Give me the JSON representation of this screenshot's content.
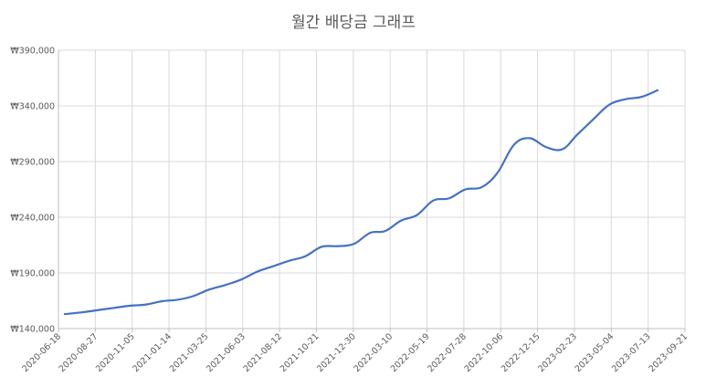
{
  "chart_data": {
    "type": "line",
    "title": "월간 배당금 그래프",
    "xlabel": "",
    "ylabel": "",
    "x_range": [
      "2020-06-18",
      "2023-09-21"
    ],
    "ylim": [
      140000,
      390000
    ],
    "y_ticks": [
      140000,
      190000,
      240000,
      290000,
      340000,
      390000
    ],
    "y_tick_labels": [
      "₩140,000",
      "₩190,000",
      "₩240,000",
      "₩290,000",
      "₩340,000",
      "₩390,000"
    ],
    "x_tick_labels": [
      "2020-06-18",
      "2020-08-27",
      "2020-11-05",
      "2021-01-14",
      "2021-03-25",
      "2021-06-03",
      "2021-08-12",
      "2021-10-21",
      "2021-12-30",
      "2022-03-10",
      "2022-05-19",
      "2022-07-28",
      "2022-10-06",
      "2022-12-15",
      "2023-02-23",
      "2023-05-04",
      "2023-07-13",
      "2023-09-21"
    ],
    "grid": true,
    "legend": "none",
    "series": [
      {
        "color": "#4472c4",
        "x": [
          "2020-06-30",
          "2020-07-31",
          "2020-08-31",
          "2020-09-30",
          "2020-10-31",
          "2020-11-30",
          "2020-12-31",
          "2021-01-31",
          "2021-02-28",
          "2021-03-31",
          "2021-04-30",
          "2021-05-31",
          "2021-06-30",
          "2021-07-31",
          "2021-08-31",
          "2021-09-30",
          "2021-10-31",
          "2021-11-30",
          "2021-12-31",
          "2022-01-31",
          "2022-02-28",
          "2022-03-31",
          "2022-04-30",
          "2022-05-31",
          "2022-06-30",
          "2022-07-31",
          "2022-08-31",
          "2022-09-30",
          "2022-10-31",
          "2022-11-30",
          "2022-12-31",
          "2023-01-31",
          "2023-02-28",
          "2023-03-31",
          "2023-04-30",
          "2023-05-31",
          "2023-06-30",
          "2023-07-31"
        ],
        "values": [
          153000,
          154500,
          156500,
          158500,
          160500,
          161500,
          164500,
          166000,
          169000,
          175000,
          179000,
          184000,
          191000,
          196000,
          201000,
          205000,
          213500,
          214000,
          216000,
          226000,
          227500,
          237000,
          242000,
          255000,
          257000,
          265000,
          267000,
          280000,
          305000,
          311000,
          303000,
          301000,
          314000,
          328000,
          341000,
          346000,
          348000,
          354000
        ]
      }
    ]
  }
}
